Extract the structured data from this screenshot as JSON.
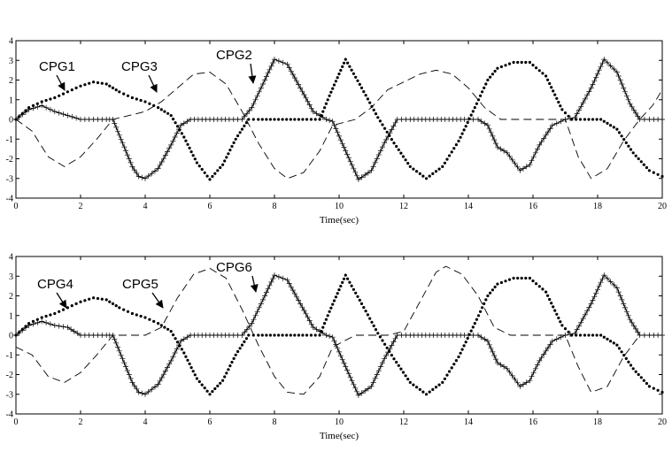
{
  "chart_data": [
    {
      "type": "line",
      "xlabel": "Time(sec)",
      "ylabel": "",
      "xlim": [
        0,
        20
      ],
      "ylim": [
        -4,
        4
      ],
      "xticks": [
        0,
        2,
        4,
        6,
        8,
        10,
        12,
        14,
        16,
        18,
        20
      ],
      "yticks": [
        -4,
        -3,
        -2,
        -1,
        0,
        1,
        2,
        3,
        4
      ],
      "grid": false,
      "series": [
        {
          "name": "CPG1",
          "style": "dotted",
          "marker": "dot",
          "x": [
            0,
            0.4,
            0.8,
            1.2,
            1.6,
            2.0,
            2.4,
            2.8,
            3.2,
            3.6,
            4.0,
            4.4,
            4.8,
            5.2,
            5.6,
            6.0,
            6.4,
            6.8,
            7.2,
            7.5,
            8.0,
            8.5,
            9.0,
            9.4,
            9.7,
            10.2,
            10.7,
            11.2,
            11.7,
            12.2,
            12.7,
            13.2,
            13.7,
            14.2,
            14.6,
            14.9,
            15.4,
            15.9,
            16.4,
            16.9,
            17.2,
            17.6,
            18.1,
            18.6,
            19.1,
            19.6,
            20.0
          ],
          "y": [
            0,
            0.6,
            0.9,
            1.1,
            1.4,
            1.7,
            1.9,
            1.8,
            1.4,
            1.1,
            0.9,
            0.6,
            0.2,
            -0.9,
            -2.2,
            -3.05,
            -2.3,
            -1.0,
            0,
            0,
            0,
            0,
            0,
            0,
            1.2,
            3.05,
            1.6,
            0.1,
            -1.2,
            -2.4,
            -3.0,
            -2.4,
            -1.1,
            0.6,
            2.0,
            2.6,
            2.9,
            2.9,
            2.2,
            0.5,
            0,
            0,
            0,
            -0.5,
            -1.7,
            -2.6,
            -2.9
          ]
        },
        {
          "name": "CPG3",
          "style": "dashed",
          "marker": "none",
          "x": [
            0,
            0.5,
            1.0,
            1.5,
            2.0,
            2.5,
            3.0,
            3.5,
            4.0,
            4.5,
            5.0,
            5.5,
            6.0,
            6.5,
            7.0,
            7.5,
            8.0,
            8.4,
            8.9,
            9.4,
            9.8,
            10.5,
            11.0,
            11.5,
            12.0,
            12.5,
            13.0,
            13.5,
            14.0,
            14.5,
            15.0,
            15.5,
            16.0,
            16.5,
            17.0,
            17.4,
            17.8,
            18.3,
            18.8,
            19.3,
            19.7,
            20.0
          ],
          "y": [
            0,
            -0.6,
            -1.9,
            -2.4,
            -1.9,
            -1.0,
            0,
            0.2,
            0.4,
            0.9,
            1.6,
            2.3,
            2.4,
            1.8,
            0.4,
            -1.2,
            -2.5,
            -3.0,
            -2.7,
            -1.6,
            -0.3,
            0,
            0.6,
            1.5,
            1.9,
            2.3,
            2.5,
            2.3,
            1.6,
            0.6,
            0,
            0,
            0,
            0,
            0,
            -1.9,
            -3.0,
            -2.5,
            -1.1,
            0,
            0.7,
            1.5
          ]
        },
        {
          "name": "CPG2",
          "style": "solid",
          "marker": "plus",
          "x": [
            0,
            0.4,
            0.8,
            1.2,
            1.6,
            2.0,
            2.4,
            2.8,
            3.0,
            3.3,
            3.6,
            3.8,
            4.0,
            4.4,
            4.8,
            5.1,
            5.4,
            6.0,
            6.6,
            7.0,
            7.3,
            7.7,
            8.0,
            8.4,
            8.8,
            9.2,
            9.6,
            9.8,
            10.2,
            10.6,
            11.0,
            11.4,
            11.8,
            12.2,
            12.8,
            13.4,
            14.0,
            14.3,
            14.6,
            14.9,
            15.2,
            15.6,
            15.9,
            16.2,
            16.6,
            17.0,
            17.3,
            17.8,
            18.2,
            18.6,
            19.0,
            19.3,
            19.6,
            20.0
          ],
          "y": [
            0,
            0.5,
            0.7,
            0.4,
            0.2,
            0,
            0,
            0,
            0,
            -1.2,
            -2.4,
            -2.9,
            -3.0,
            -2.5,
            -1.3,
            -0.3,
            0,
            0,
            0,
            0,
            0.6,
            2.0,
            3.05,
            2.8,
            1.6,
            0.4,
            0,
            -0.1,
            -1.6,
            -3.05,
            -2.6,
            -1.2,
            0,
            0,
            0,
            0,
            0,
            0,
            -0.3,
            -1.4,
            -1.7,
            -2.6,
            -2.3,
            -1.3,
            -0.3,
            0,
            0.1,
            1.6,
            3.05,
            2.4,
            0.8,
            0,
            0,
            0
          ]
        }
      ],
      "annotations": [
        {
          "text": "CPG1"
        },
        {
          "text": "CPG3"
        },
        {
          "text": "CPG2"
        }
      ]
    },
    {
      "type": "line",
      "xlabel": "Time(sec)",
      "ylabel": "",
      "xlim": [
        0,
        20
      ],
      "ylim": [
        -4,
        4
      ],
      "xticks": [
        0,
        2,
        4,
        6,
        8,
        10,
        12,
        14,
        16,
        18,
        20
      ],
      "yticks": [
        -4,
        -3,
        -2,
        -1,
        0,
        1,
        2,
        3,
        4
      ],
      "grid": false,
      "series": [
        {
          "name": "CPG4",
          "style": "dotted",
          "marker": "dot",
          "x": [
            0,
            0.4,
            0.8,
            1.2,
            1.6,
            2.0,
            2.4,
            2.8,
            3.2,
            3.6,
            4.0,
            4.4,
            4.8,
            5.2,
            5.6,
            6.0,
            6.4,
            6.8,
            7.2,
            7.5,
            8.0,
            8.5,
            9.0,
            9.4,
            9.7,
            10.2,
            10.7,
            11.2,
            11.7,
            12.2,
            12.7,
            13.2,
            13.7,
            14.2,
            14.6,
            14.9,
            15.4,
            15.9,
            16.4,
            16.9,
            17.2,
            17.6,
            18.1,
            18.6,
            19.1,
            19.6,
            20.0
          ],
          "y": [
            0,
            0.6,
            0.9,
            1.1,
            1.4,
            1.7,
            1.9,
            1.8,
            1.4,
            1.1,
            0.9,
            0.6,
            0.2,
            -0.9,
            -2.2,
            -3.0,
            -2.3,
            -1.0,
            0,
            0,
            0,
            0,
            0,
            0,
            1.2,
            3.05,
            1.6,
            0.1,
            -1.2,
            -2.4,
            -3.0,
            -2.4,
            -1.1,
            0.6,
            2.0,
            2.6,
            2.9,
            2.9,
            2.2,
            0.5,
            0,
            0,
            0,
            -0.5,
            -1.7,
            -2.6,
            -2.9
          ]
        },
        {
          "name": "CPG5",
          "style": "dashed",
          "marker": "none",
          "x": [
            0,
            0.5,
            1.0,
            1.5,
            2.0,
            2.5,
            3.0,
            3.5,
            4.0,
            4.5,
            5.0,
            5.5,
            6.0,
            6.5,
            7.0,
            7.5,
            8.0,
            8.4,
            8.9,
            9.4,
            9.8,
            10.5,
            11.0,
            11.5,
            12.0,
            12.5,
            13.0,
            13.3,
            13.8,
            14.3,
            14.8,
            15.3,
            16.0,
            16.5,
            17.0,
            17.4,
            17.8,
            18.3,
            18.8,
            19.3,
            19.7,
            20.0
          ],
          "y": [
            -0.6,
            -1.0,
            -2.1,
            -2.4,
            -1.9,
            -1.0,
            0,
            0,
            0,
            0.4,
            1.9,
            3.1,
            3.4,
            2.9,
            1.3,
            -0.5,
            -2.1,
            -2.9,
            -3.0,
            -2.1,
            -0.6,
            0,
            0,
            0,
            0.2,
            1.7,
            3.2,
            3.5,
            3.1,
            2.0,
            0.4,
            0,
            0,
            0,
            0,
            -1.6,
            -2.9,
            -2.6,
            -1.1,
            0,
            0,
            0
          ]
        },
        {
          "name": "CPG6",
          "style": "solid",
          "marker": "plus",
          "x": [
            0,
            0.4,
            0.8,
            1.2,
            1.6,
            2.0,
            2.4,
            2.8,
            3.0,
            3.3,
            3.6,
            3.8,
            4.0,
            4.4,
            4.8,
            5.1,
            5.4,
            6.0,
            6.6,
            7.0,
            7.3,
            7.7,
            8.0,
            8.4,
            8.8,
            9.2,
            9.6,
            9.8,
            10.2,
            10.6,
            11.0,
            11.4,
            11.8,
            12.2,
            12.8,
            13.4,
            14.0,
            14.3,
            14.6,
            14.9,
            15.2,
            15.6,
            15.9,
            16.2,
            16.6,
            17.0,
            17.3,
            17.8,
            18.2,
            18.6,
            19.0,
            19.3,
            19.6,
            20.0
          ],
          "y": [
            0,
            0.5,
            0.7,
            0.5,
            0.4,
            0,
            0,
            0,
            0,
            -1.2,
            -2.4,
            -2.9,
            -3.0,
            -2.5,
            -1.3,
            -0.3,
            0,
            0,
            0,
            0,
            0.6,
            2.0,
            3.05,
            2.8,
            1.6,
            0.4,
            0,
            -0.1,
            -1.6,
            -3.05,
            -2.6,
            -1.2,
            0,
            0,
            0,
            0,
            0,
            0,
            -0.3,
            -1.4,
            -1.7,
            -2.6,
            -2.3,
            -1.3,
            -0.3,
            0,
            0.1,
            1.6,
            3.05,
            2.4,
            0.8,
            0,
            0,
            0
          ]
        }
      ],
      "annotations": [
        {
          "text": "CPG4"
        },
        {
          "text": "CPG5"
        },
        {
          "text": "CPG6"
        }
      ]
    }
  ]
}
